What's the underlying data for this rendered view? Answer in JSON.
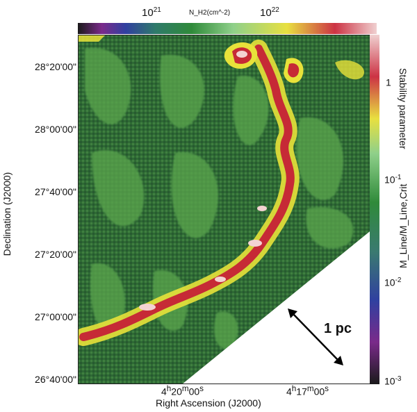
{
  "top_colorbar": {
    "label": "N_H2(cm^-2)",
    "ticks": [
      {
        "base": "10",
        "exp": "21"
      },
      {
        "base": "10",
        "exp": "22"
      }
    ]
  },
  "right_colorbar": {
    "title": "Stability parameter",
    "label": "M_Line/M_Line,Crit",
    "ticks": [
      {
        "base": "1",
        "exp": ""
      },
      {
        "base": "10",
        "exp": "-1"
      },
      {
        "base": "10",
        "exp": "-2"
      },
      {
        "base": "10",
        "exp": "-3"
      }
    ],
    "colors": [
      "#e8c4c4",
      "#cc3344",
      "#e8e040",
      "#2f8a3a",
      "#8fd08a",
      "#3a7a70",
      "#3040a0",
      "#7a2a8a",
      "#1a1a1a"
    ]
  },
  "y_axis": {
    "label": "Declination (J2000)",
    "ticks": [
      "28°20'00\"",
      "28°00'00\"",
      "27°40'00\"",
      "27°20'00\"",
      "27°00'00\"",
      "26°40'00\""
    ]
  },
  "x_axis": {
    "label": "Right Ascension (J2000)",
    "ticks": [
      {
        "h": "4",
        "m": "20",
        "s": "00"
      },
      {
        "h": "4",
        "m": "17",
        "s": "00"
      }
    ]
  },
  "scale_bar": {
    "label": "1 pc"
  },
  "colors": {
    "background_green": "#2e6a34",
    "mid_green": "#5aa54e",
    "yellow": "#e8e23a",
    "red": "#c62a36",
    "pink": "#f3d2d2",
    "dark": "#1e3a2a"
  }
}
